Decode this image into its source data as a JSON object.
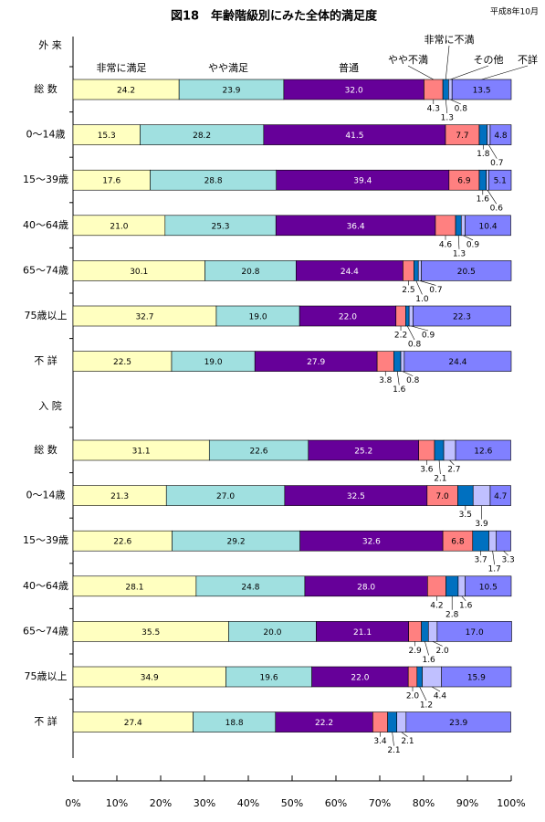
{
  "chart_data": {
    "type": "bar",
    "orientation": "horizontal",
    "stacked": true,
    "title": "図18　年齢階級別にみた全体的満足度",
    "note": "平成8年10月",
    "series": [
      {
        "name": "非常に満足",
        "color": "#ffffc0"
      },
      {
        "name": "やや満足",
        "color": "#a0e0e0"
      },
      {
        "name": "普通",
        "color": "#660099"
      },
      {
        "name": "やや不満",
        "color": "#ff8080"
      },
      {
        "name": "非常に不満",
        "color": "#0070c0"
      },
      {
        "name": "その他",
        "color": "#c0c0ff"
      },
      {
        "name": "不詳",
        "color": "#8080ff"
      }
    ],
    "groups": [
      {
        "label": "外 来",
        "categories": [
          "総 数",
          "0〜14歳",
          "15〜39歳",
          "40〜64歳",
          "65〜74歳",
          "75歳以上",
          "不 詳"
        ],
        "values": [
          [
            24.2,
            23.9,
            32,
            4.3,
            1.3,
            0.8,
            13.5
          ],
          [
            15.3,
            28.2,
            41.5,
            7.7,
            1.8,
            0.7,
            4.8
          ],
          [
            17.6,
            28.8,
            39.4,
            6.9,
            1.6,
            0.6,
            5.1
          ],
          [
            21,
            25.3,
            36.4,
            4.6,
            1.3,
            0.9,
            10.4
          ],
          [
            30.1,
            20.8,
            24.4,
            2.5,
            1,
            0.7,
            20.5
          ],
          [
            32.7,
            19,
            22,
            2.2,
            0.8,
            0.9,
            22.3
          ],
          [
            22.5,
            19,
            27.9,
            3.8,
            1.6,
            0.8,
            24.4
          ]
        ],
        "value_labels": [
          [
            "24.2",
            "23.9",
            "32.0",
            "4.3",
            "1.3",
            "0.8",
            "13.5"
          ],
          [
            "15.3",
            "28.2",
            "41.5",
            "7.7",
            "1.8",
            "0.7",
            "4.8"
          ],
          [
            "17.6",
            "28.8",
            "39.4",
            "6.9",
            "1.6",
            "0.6",
            "5.1"
          ],
          [
            "21.0",
            "25.3",
            "36.4",
            "4.6",
            "1.3",
            "0.9",
            "10.4"
          ],
          [
            "30.1",
            "20.8",
            "24.4",
            "2.5",
            "1.0",
            "0.7",
            "20.5"
          ],
          [
            "32.7",
            "19.0",
            "22.0",
            "2.2",
            "0.8",
            "0.9",
            "22.3"
          ],
          [
            "22.5",
            "19.0",
            "27.9",
            "3.8",
            "1.6",
            "0.8",
            "24.4"
          ]
        ]
      },
      {
        "label": "入 院",
        "categories": [
          "総 数",
          "0〜14歳",
          "15〜39歳",
          "40〜64歳",
          "65〜74歳",
          "75歳以上",
          "不 詳"
        ],
        "values": [
          [
            31.1,
            22.6,
            25.2,
            3.6,
            2.1,
            2.7,
            12.6
          ],
          [
            21.3,
            27,
            32.5,
            7,
            3.5,
            3.9,
            4.7
          ],
          [
            22.6,
            29.2,
            32.6,
            6.8,
            3.7,
            1.7,
            3.3
          ],
          [
            28.1,
            24.8,
            28,
            4.2,
            2.8,
            1.6,
            10.5
          ],
          [
            35.5,
            20,
            21.1,
            2.9,
            1.6,
            2,
            17
          ],
          [
            34.9,
            19.6,
            22,
            2,
            1.2,
            4.4,
            15.9
          ],
          [
            27.4,
            18.8,
            22.2,
            3.4,
            2.1,
            2.1,
            23.9
          ]
        ],
        "value_labels": [
          [
            "31.1",
            "22.6",
            "25.2",
            "3.6",
            "2.1",
            "2.7",
            "12.6"
          ],
          [
            "21.3",
            "27.0",
            "32.5",
            "7.0",
            "3.5",
            "3.9",
            "4.7"
          ],
          [
            "22.6",
            "29.2",
            "32.6",
            "6.8",
            "3.7",
            "1.7",
            "3.3"
          ],
          [
            "28.1",
            "24.8",
            "28.0",
            "4.2",
            "2.8",
            "1.6",
            "10.5"
          ],
          [
            "35.5",
            "20.0",
            "21.1",
            "2.9",
            "1.6",
            "2.0",
            "17.0"
          ],
          [
            "34.9",
            "19.6",
            "22.0",
            "2.0",
            "1.2",
            "4.4",
            "15.9"
          ],
          [
            "27.4",
            "18.8",
            "22.2",
            "3.4",
            "2.1",
            "2.1",
            "23.9"
          ]
        ]
      }
    ],
    "xlim": [
      0,
      100
    ],
    "xticks": [
      {
        "value": 0,
        "label": "0%"
      },
      {
        "value": 10,
        "label": "10%"
      },
      {
        "value": 20,
        "label": "20%"
      },
      {
        "value": 30,
        "label": "30%"
      },
      {
        "value": 40,
        "label": "40%"
      },
      {
        "value": 50,
        "label": "50%"
      },
      {
        "value": 60,
        "label": "60%"
      },
      {
        "value": 70,
        "label": "70%"
      },
      {
        "value": 80,
        "label": "80%"
      },
      {
        "value": 90,
        "label": "90%"
      },
      {
        "value": 100,
        "label": "100%"
      }
    ]
  }
}
